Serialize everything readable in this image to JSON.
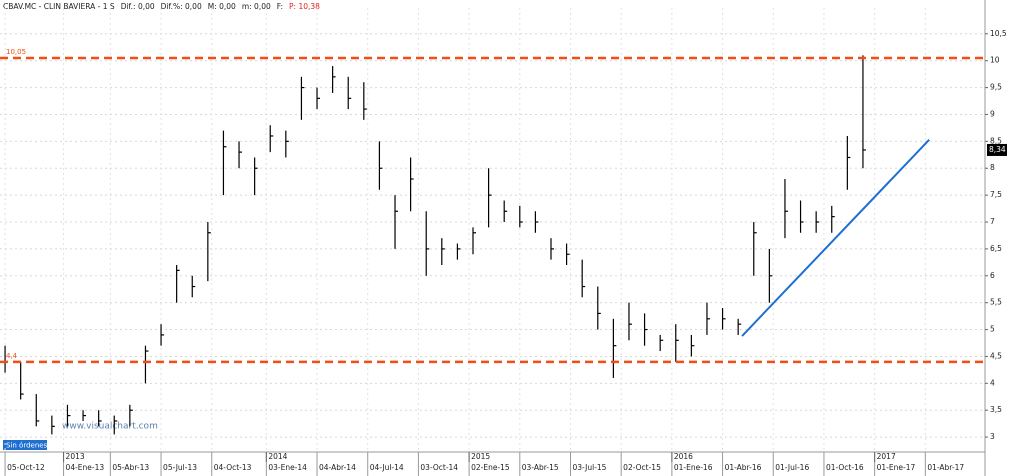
{
  "chart_data": {
    "type": "ohlc",
    "header": [
      "CBAV.MC - CLIN BAVIERA - 1 S",
      "Dif.: 0,00",
      "Dif.%: 0,00",
      "M: 0,00",
      "m: 0,00",
      "F:",
      "P: 10,38"
    ],
    "watermark": "www.visualchart.com",
    "status": "Sin órdenes",
    "color": "#000000",
    "x": [
      0,
      4,
      8,
      12,
      16,
      20,
      24,
      28,
      32,
      36,
      40,
      44,
      48,
      52,
      56,
      60,
      64,
      68,
      72,
      76,
      80,
      84,
      88,
      92,
      96,
      100,
      104,
      108,
      112,
      116,
      120,
      124,
      128,
      132,
      136,
      140,
      144,
      148,
      152,
      156,
      160,
      164,
      168,
      172,
      176,
      180,
      184,
      188,
      192,
      196,
      200,
      204,
      208,
      212,
      216,
      220
    ],
    "high": [
      4.7,
      4.4,
      3.8,
      3.4,
      3.6,
      3.5,
      3.5,
      3.4,
      3.6,
      4.7,
      5.1,
      6.2,
      6.0,
      7.0,
      8.7,
      8.5,
      8.2,
      8.8,
      8.7,
      9.7,
      9.5,
      9.9,
      9.7,
      9.6,
      8.5,
      7.5,
      8.2,
      7.2,
      6.7,
      6.6,
      6.9,
      8.0,
      7.4,
      7.3,
      7.2,
      6.7,
      6.6,
      6.3,
      5.8,
      5.2,
      5.5,
      5.3,
      4.9,
      5.1,
      4.9,
      5.5,
      5.4,
      5.2,
      7.0,
      6.5,
      7.8,
      7.4,
      7.2,
      7.3,
      8.6,
      10.1
    ],
    "low": [
      4.2,
      3.7,
      3.2,
      3.05,
      3.2,
      3.3,
      3.2,
      3.05,
      3.2,
      4.0,
      4.7,
      5.5,
      5.6,
      5.9,
      7.5,
      8.0,
      7.5,
      8.3,
      8.2,
      8.9,
      9.1,
      9.4,
      9.1,
      8.9,
      7.6,
      6.5,
      7.2,
      6.0,
      6.2,
      6.3,
      6.4,
      6.9,
      7.0,
      6.9,
      6.8,
      6.3,
      6.2,
      5.6,
      5.0,
      4.1,
      4.8,
      4.7,
      4.6,
      4.4,
      4.5,
      4.9,
      5.0,
      4.9,
      6.0,
      5.5,
      6.7,
      6.8,
      6.8,
      6.8,
      7.6,
      8.0
    ],
    "close": [
      4.4,
      3.8,
      3.3,
      3.2,
      3.4,
      3.4,
      3.3,
      3.3,
      3.5,
      4.6,
      4.9,
      6.1,
      5.8,
      6.8,
      8.4,
      8.3,
      8.0,
      8.6,
      8.5,
      9.5,
      9.3,
      9.7,
      9.3,
      9.1,
      8.0,
      7.2,
      7.8,
      6.5,
      6.5,
      6.5,
      6.8,
      7.5,
      7.2,
      7.0,
      7.0,
      6.5,
      6.4,
      5.8,
      5.3,
      4.7,
      5.1,
      5.0,
      4.8,
      4.8,
      4.7,
      5.2,
      5.2,
      5.1,
      6.8,
      6.0,
      7.2,
      7.0,
      7.0,
      7.1,
      8.2,
      8.34
    ],
    "last_price": {
      "value": 8.34,
      "label": "8,34"
    },
    "levels": [
      {
        "value": 10.05,
        "label": "10,05",
        "color": "#f04e12"
      },
      {
        "value": 4.4,
        "label": "4,4",
        "color": "#f04e12"
      }
    ],
    "trendline": {
      "x": [
        189,
        237
      ],
      "values": [
        4.88,
        8.53
      ],
      "color": "#1f6fd0"
    },
    "xlim": [
      -1.3,
      251.3
    ],
    "ylim": [
      2.76,
      10.98
    ],
    "yticks": [
      3,
      {
        "value": 3.5,
        "label": "3,5"
      },
      4,
      {
        "value": 4.5,
        "label": "4,5"
      },
      5,
      {
        "value": 5.5,
        "label": "5,5"
      },
      6,
      {
        "value": 6.5,
        "label": "6,5"
      },
      7,
      {
        "value": 7.5,
        "label": "7,5"
      },
      8,
      {
        "value": 8.5,
        "label": "8,5"
      },
      9,
      {
        "value": 9.5,
        "label": "9,5"
      },
      10,
      {
        "value": 10.5,
        "label": "10,5"
      }
    ],
    "xticks": [
      {
        "value": 0,
        "label": "05-Oct-12"
      },
      {
        "value": 15,
        "label": "04-Ene-13"
      },
      {
        "value": 27,
        "label": "05-Abr-13"
      },
      {
        "value": 40,
        "label": "05-Jul-13"
      },
      {
        "value": 53,
        "label": "04-Oct-13"
      },
      {
        "value": 67,
        "label": "03-Ene-14"
      },
      {
        "value": 80,
        "label": "04-Abr-14"
      },
      {
        "value": 93,
        "label": "04-Jul-14"
      },
      {
        "value": 106,
        "label": "03-Oct-14"
      },
      {
        "value": 119,
        "label": "02-Ene-15"
      },
      {
        "value": 132,
        "label": "03-Abr-15"
      },
      {
        "value": 145,
        "label": "03-Jul-15"
      },
      {
        "value": 158,
        "label": "02-Oct-15"
      },
      {
        "value": 171,
        "label": "01-Ene-16"
      },
      {
        "value": 184,
        "label": "01-Abr-16"
      },
      {
        "value": 197,
        "label": "01-Jul-16"
      },
      {
        "value": 210,
        "label": "01-Oct-16"
      },
      {
        "value": 223,
        "label": "01-Ene-17"
      },
      {
        "value": 236,
        "label": "01-Abr-17"
      }
    ],
    "year_ticks": [
      {
        "value": 15,
        "label": "2013"
      },
      {
        "value": 67,
        "label": "2014"
      },
      {
        "value": 119,
        "label": "2015"
      },
      {
        "value": 171,
        "label": "2016"
      },
      {
        "value": 223,
        "label": "2017"
      }
    ],
    "grid": true
  }
}
